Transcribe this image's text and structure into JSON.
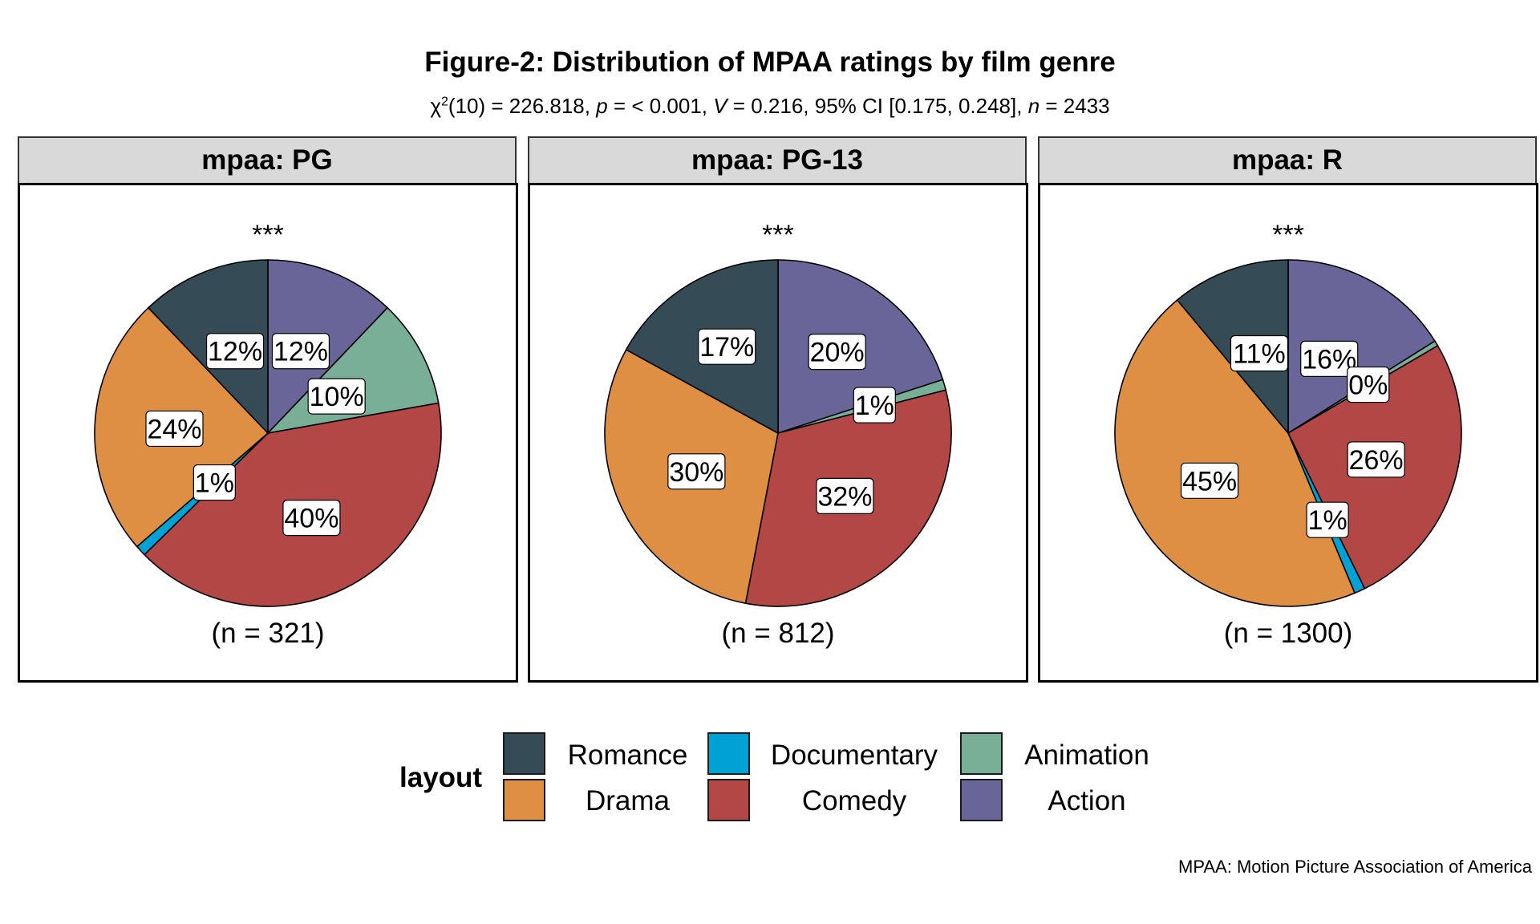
{
  "title": "Figure-2: Distribution of MPAA ratings by film genre",
  "subtitle": {
    "chi": "χ",
    "sup": "2",
    "df_part": "(10) = 226.818, ",
    "p_sym": "p",
    "p_part": " = < 0.001, ",
    "v_sym": "V",
    "v_part": " = 0.216, 95% CI [0.175, 0.248], ",
    "n_sym": "n",
    "n_part": " = 2433"
  },
  "caption": "MPAA: Motion Picture Association of America",
  "legend": {
    "title": "layout",
    "items": [
      {
        "name": "Romance",
        "color": "#354B55"
      },
      {
        "name": "Drama",
        "color": "#DE8F44"
      },
      {
        "name": "Documentary",
        "color": "#00A1D5"
      },
      {
        "name": "Comedy",
        "color": "#B24745"
      },
      {
        "name": "Animation",
        "color": "#79AF97"
      },
      {
        "name": "Action",
        "color": "#6A6599"
      }
    ]
  },
  "chart_data": [
    {
      "type": "pie",
      "facet": "mpaa: PG",
      "significance": "***",
      "n_label": "(n = 321)",
      "slices": [
        {
          "category": "Action",
          "value": 12,
          "label": "12%"
        },
        {
          "category": "Animation",
          "value": 10,
          "label": "10%"
        },
        {
          "category": "Comedy",
          "value": 40,
          "label": "40%"
        },
        {
          "category": "Documentary",
          "value": 1,
          "label": "1%"
        },
        {
          "category": "Drama",
          "value": 24,
          "label": "24%"
        },
        {
          "category": "Romance",
          "value": 12,
          "label": "12%"
        }
      ]
    },
    {
      "type": "pie",
      "facet": "mpaa: PG-13",
      "significance": "***",
      "n_label": "(n = 812)",
      "slices": [
        {
          "category": "Action",
          "value": 20,
          "label": "20%"
        },
        {
          "category": "Animation",
          "value": 1,
          "label": "1%"
        },
        {
          "category": "Comedy",
          "value": 32,
          "label": "32%"
        },
        {
          "category": "Documentary",
          "value": 0,
          "label": ""
        },
        {
          "category": "Drama",
          "value": 30,
          "label": "30%"
        },
        {
          "category": "Romance",
          "value": 17,
          "label": "17%"
        }
      ]
    },
    {
      "type": "pie",
      "facet": "mpaa: R",
      "significance": "***",
      "n_label": "(n = 1300)",
      "slices": [
        {
          "category": "Action",
          "value": 16,
          "label": "16%"
        },
        {
          "category": "Animation",
          "value": 0.5,
          "label": "0%"
        },
        {
          "category": "Comedy",
          "value": 26,
          "label": "26%"
        },
        {
          "category": "Documentary",
          "value": 1,
          "label": "1%"
        },
        {
          "category": "Drama",
          "value": 45,
          "label": "45%"
        },
        {
          "category": "Romance",
          "value": 11,
          "label": "11%"
        }
      ]
    }
  ]
}
